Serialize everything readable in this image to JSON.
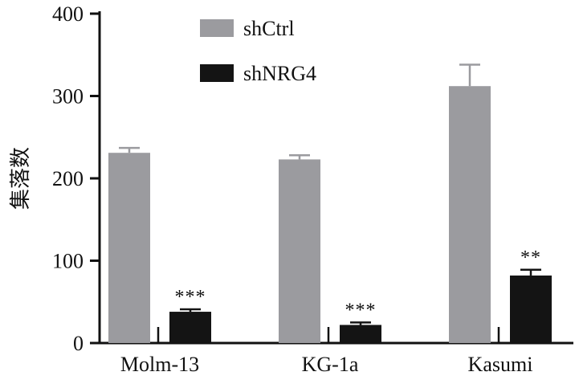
{
  "chart_data": {
    "type": "bar",
    "title": "",
    "xlabel": "",
    "ylabel": "集落数",
    "ylim": [
      0,
      400
    ],
    "yticks": [
      0,
      100,
      200,
      300,
      400
    ],
    "categories": [
      "Molm-13",
      "KG-1a",
      "Kasumi"
    ],
    "series": [
      {
        "name": "shCtrl",
        "color": "#9b9b9f",
        "values": [
          231,
          223,
          312
        ],
        "errors": [
          6,
          5,
          26
        ]
      },
      {
        "name": "shNRG4",
        "color": "#141414",
        "values": [
          38,
          22,
          82
        ],
        "errors": [
          3,
          3,
          7
        ]
      }
    ],
    "annotations": [
      "***",
      "***",
      "**"
    ],
    "legend_position": "top-center",
    "grid": false
  }
}
